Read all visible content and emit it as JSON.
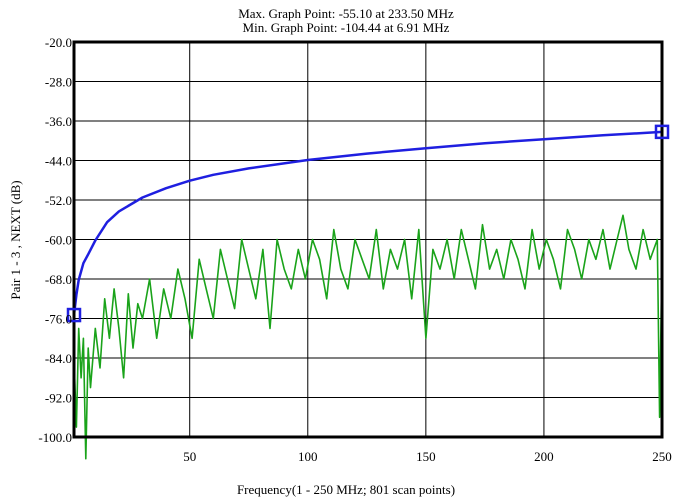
{
  "chart_data": {
    "type": "line",
    "title": "Max. Graph Point: -55.10 at 233.50 MHz",
    "subtitle": "Min. Graph Point: -104.44 at 6.91 MHz",
    "xlabel": "Frequency(1 - 250 MHz; 801 scan points)",
    "ylabel": "Pair 1 - 3 , NEXT (dB)",
    "xlim": [
      1,
      250
    ],
    "ylim": [
      -100,
      -20
    ],
    "xticks": [
      50,
      100,
      150,
      200,
      250
    ],
    "xtick_labels": [
      "50",
      "100",
      "150",
      "200",
      "250"
    ],
    "yticks": [
      -20,
      -28,
      -36,
      -44,
      -52,
      -60,
      -68,
      -76,
      -84,
      -92,
      -100
    ],
    "ytick_labels": [
      "-20.0",
      "-28.0",
      "-36.0",
      "-44.0",
      "-52.0",
      "-60.0",
      "-68.0",
      "-76.0",
      "-84.0",
      "-92.0",
      "-100.0"
    ],
    "grid": true,
    "series": [
      {
        "role": "limit",
        "color": "#1f1fe0",
        "x": [
          1,
          2,
          3,
          5,
          7,
          10,
          15,
          20,
          30,
          40,
          50,
          60,
          75,
          100,
          125,
          150,
          175,
          200,
          225,
          250
        ],
        "y": [
          -75.3,
          -71.2,
          -68.2,
          -64.8,
          -63.0,
          -60.2,
          -56.5,
          -54.3,
          -51.5,
          -49.6,
          -48.1,
          -46.9,
          -45.6,
          -43.9,
          -42.6,
          -41.5,
          -40.5,
          -39.7,
          -38.9,
          -38.2
        ],
        "markers": [
          {
            "x": 1,
            "y": -75.3
          },
          {
            "x": 250,
            "y": -38.2
          }
        ]
      },
      {
        "role": "measured",
        "color": "#1aa31a",
        "x": [
          1,
          2,
          3,
          4,
          5,
          6,
          7,
          8,
          10,
          12,
          14,
          16,
          18,
          20,
          22,
          24,
          26,
          28,
          30,
          33,
          36,
          39,
          42,
          45,
          48,
          51,
          54,
          57,
          60,
          63,
          66,
          69,
          72,
          75,
          78,
          81,
          84,
          87,
          90,
          93,
          96,
          99,
          102,
          105,
          108,
          111,
          114,
          117,
          120,
          123,
          126,
          129,
          132,
          135,
          138,
          141,
          144,
          147,
          150,
          153,
          156,
          159,
          162,
          165,
          168,
          171,
          174,
          177,
          180,
          183,
          186,
          189,
          192,
          195,
          198,
          201,
          204,
          207,
          210,
          213,
          216,
          219,
          222,
          225,
          228,
          231,
          233.5,
          236,
          239,
          242,
          245,
          248,
          249,
          250
        ],
        "y": [
          -84,
          -98,
          -78,
          -88,
          -80,
          -104.4,
          -82,
          -90,
          -78,
          -86,
          -72,
          -80,
          -70,
          -78,
          -88,
          -71,
          -82,
          -73,
          -76,
          -68,
          -80,
          -70,
          -76,
          -66,
          -72,
          -80,
          -64,
          -70,
          -76,
          -62,
          -68,
          -74,
          -60,
          -66,
          -72,
          -62,
          -78,
          -60,
          -66,
          -70,
          -62,
          -68,
          -60,
          -64,
          -72,
          -58,
          -66,
          -70,
          -60,
          -64,
          -68,
          -58,
          -70,
          -62,
          -66,
          -60,
          -72,
          -58,
          -80,
          -62,
          -66,
          -60,
          -68,
          -58,
          -64,
          -70,
          -57,
          -66,
          -62,
          -68,
          -60,
          -64,
          -70,
          -58,
          -66,
          -60,
          -64,
          -70,
          -58,
          -62,
          -68,
          -60,
          -64,
          -58,
          -66,
          -60,
          -55.1,
          -62,
          -66,
          -58,
          -64,
          -60,
          -96,
          -63
        ]
      }
    ],
    "colors": {
      "frame": "#000000",
      "grid": "#000000",
      "limit": "#1f1fe0",
      "measured": "#1aa31a"
    }
  }
}
